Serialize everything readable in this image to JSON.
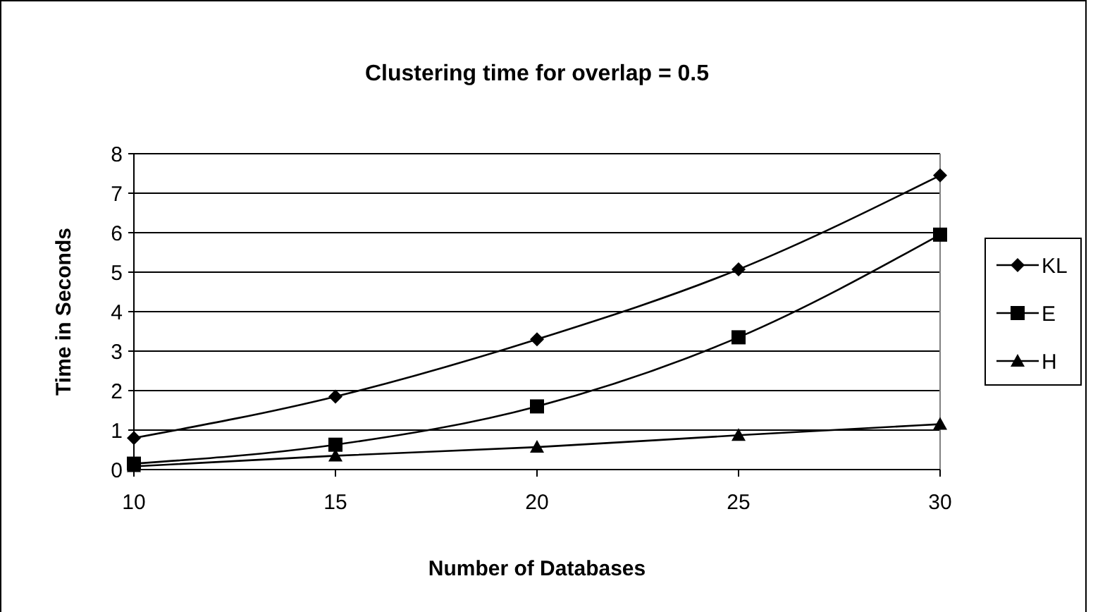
{
  "chart_data": {
    "type": "line",
    "title": "Clustering time for overlap = 0.5",
    "xlabel": "Number of Databases",
    "ylabel": "Time in Seconds",
    "x": [
      10,
      15,
      20,
      25,
      30
    ],
    "xlim": [
      10,
      30
    ],
    "xticks": [
      10,
      15,
      20,
      25,
      30
    ],
    "ylim": [
      0,
      8
    ],
    "yticks": [
      0,
      1,
      2,
      3,
      4,
      5,
      6,
      7,
      8
    ],
    "grid": "y",
    "legend": "right",
    "line_style": "solid",
    "series": [
      {
        "name": "KL",
        "color": "#000000",
        "marker": "diamond",
        "values": [
          0.8,
          1.85,
          3.3,
          5.07,
          7.45
        ]
      },
      {
        "name": "E",
        "color": "#000000",
        "marker": "square",
        "values": [
          0.15,
          0.63,
          1.6,
          3.35,
          5.95
        ]
      },
      {
        "name": "H",
        "color": "#000000",
        "marker": "triangle",
        "values": [
          0.08,
          0.35,
          0.57,
          0.87,
          1.15
        ]
      }
    ]
  }
}
